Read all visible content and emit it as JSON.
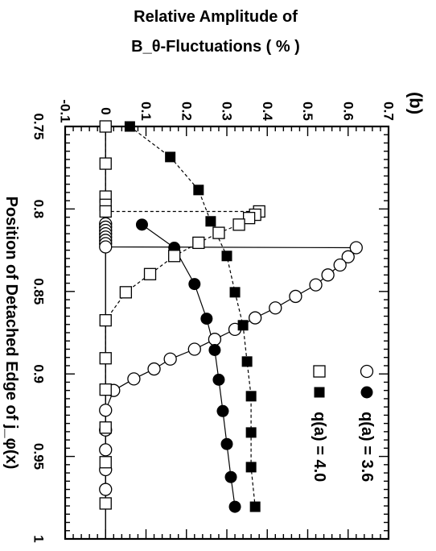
{
  "chart_data": {
    "type": "line",
    "panel_label": "(b)",
    "xlabel": "Position of Detached Edge of j_φ(x)",
    "ylabel_line1": "Relative Amplitude of",
    "ylabel_line2": "B_θ-Fluctuations ( % )",
    "xlim": [
      0.75,
      1.0
    ],
    "ylim": [
      -0.1,
      0.7
    ],
    "x_ticks": [
      "0.75",
      "0.8",
      "0.85",
      "0.9",
      "0.95",
      "1"
    ],
    "y_ticks": [
      "-0.1",
      "0",
      "0.1",
      "0.2",
      "0.3",
      "0.4",
      "0.5",
      "0.6",
      "0.7"
    ],
    "legend": [
      {
        "label": "q(a) = 3.6",
        "markers": [
          "open-circle",
          "filled-circle"
        ],
        "line": "solid"
      },
      {
        "label": "q(a) = 4.0",
        "markers": [
          "open-square",
          "filled-square"
        ],
        "line": "dashed"
      }
    ],
    "series": [
      {
        "marker": "open-circle",
        "line": "solid",
        "values": [
          [
            0.809,
            0.0
          ],
          [
            0.811,
            0.0
          ],
          [
            0.813,
            0.0
          ],
          [
            0.815,
            0.0
          ],
          [
            0.817,
            0.0
          ],
          [
            0.819,
            0.0
          ],
          [
            0.821,
            0.0
          ],
          [
            0.823,
            0.0
          ],
          [
            0.8235,
            0.62
          ],
          [
            0.829,
            0.6
          ],
          [
            0.834,
            0.58
          ],
          [
            0.84,
            0.55
          ],
          [
            0.846,
            0.52
          ],
          [
            0.853,
            0.47
          ],
          [
            0.86,
            0.42
          ],
          [
            0.866,
            0.37
          ],
          [
            0.873,
            0.32
          ],
          [
            0.879,
            0.27
          ],
          [
            0.885,
            0.22
          ],
          [
            0.891,
            0.16
          ],
          [
            0.897,
            0.12
          ],
          [
            0.903,
            0.07
          ],
          [
            0.91,
            0.02
          ],
          [
            0.922,
            0.0
          ],
          [
            0.934,
            0.0
          ],
          [
            0.946,
            0.0
          ],
          [
            0.958,
            0.0
          ],
          [
            0.97,
            0.0
          ]
        ]
      },
      {
        "marker": "filled-circle",
        "line": "solid",
        "values": [
          [
            0.8095,
            0.09
          ],
          [
            0.8235,
            0.17
          ],
          [
            0.8455,
            0.22
          ],
          [
            0.8665,
            0.25
          ],
          [
            0.8855,
            0.27
          ],
          [
            0.9035,
            0.28
          ],
          [
            0.9225,
            0.29
          ],
          [
            0.9425,
            0.3
          ],
          [
            0.9625,
            0.31
          ],
          [
            0.9805,
            0.32
          ]
        ]
      },
      {
        "marker": "open-square",
        "line": "dashed",
        "values": [
          [
            0.75,
            0.0
          ],
          [
            0.7725,
            0.0
          ],
          [
            0.7925,
            0.0
          ],
          [
            0.7975,
            0.0
          ],
          [
            0.8015,
            0.0
          ],
          [
            0.8015,
            0.38
          ],
          [
            0.8035,
            0.37
          ],
          [
            0.8055,
            0.355
          ],
          [
            0.8095,
            0.33
          ],
          [
            0.8145,
            0.28
          ],
          [
            0.8205,
            0.23
          ],
          [
            0.8285,
            0.17
          ],
          [
            0.8395,
            0.11
          ],
          [
            0.8505,
            0.05
          ],
          [
            0.8675,
            0.0
          ],
          [
            0.8905,
            0.0
          ],
          [
            0.9095,
            0.0
          ],
          [
            0.9325,
            0.0
          ],
          [
            0.9535,
            0.0
          ],
          [
            0.9785,
            0.0
          ]
        ]
      },
      {
        "marker": "filled-square",
        "line": "dashed",
        "values": [
          [
            0.75,
            0.06
          ],
          [
            0.7685,
            0.16
          ],
          [
            0.7885,
            0.23
          ],
          [
            0.8075,
            0.26
          ],
          [
            0.8285,
            0.3
          ],
          [
            0.8505,
            0.32
          ],
          [
            0.8705,
            0.34
          ],
          [
            0.8925,
            0.35
          ],
          [
            0.9135,
            0.36
          ],
          [
            0.9355,
            0.36
          ],
          [
            0.9565,
            0.36
          ],
          [
            0.9805,
            0.37
          ]
        ]
      }
    ]
  }
}
